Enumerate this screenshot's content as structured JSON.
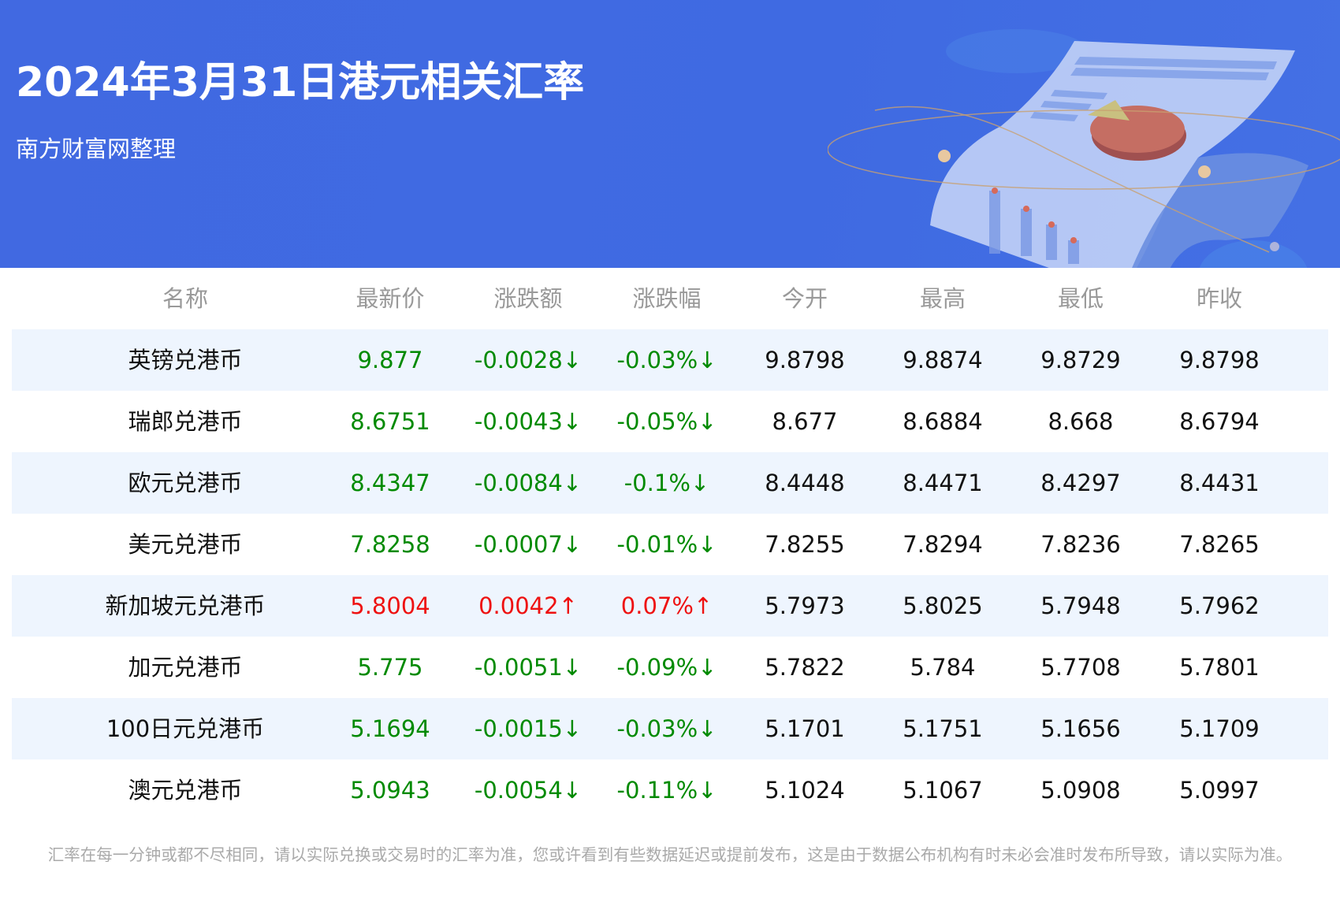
{
  "header": {
    "title": "2024年3月31日港元相关汇率",
    "subtitle": "南方财富网整理",
    "background_color": "#4169e1"
  },
  "table": {
    "columns": [
      "名称",
      "最新价",
      "涨跌额",
      "涨跌幅",
      "今开",
      "最高",
      "最低",
      "昨收"
    ],
    "rows": [
      {
        "name": "英镑兑港币",
        "latest": "9.877",
        "change": "-0.0028↓",
        "change_pct": "-0.03%↓",
        "open": "9.8798",
        "high": "9.8874",
        "low": "9.8729",
        "prev_close": "9.8798",
        "trend": "down"
      },
      {
        "name": "瑞郎兑港币",
        "latest": "8.6751",
        "change": "-0.0043↓",
        "change_pct": "-0.05%↓",
        "open": "8.677",
        "high": "8.6884",
        "low": "8.668",
        "prev_close": "8.6794",
        "trend": "down"
      },
      {
        "name": "欧元兑港币",
        "latest": "8.4347",
        "change": "-0.0084↓",
        "change_pct": "-0.1%↓",
        "open": "8.4448",
        "high": "8.4471",
        "low": "8.4297",
        "prev_close": "8.4431",
        "trend": "down"
      },
      {
        "name": "美元兑港币",
        "latest": "7.8258",
        "change": "-0.0007↓",
        "change_pct": "-0.01%↓",
        "open": "7.8255",
        "high": "7.8294",
        "low": "7.8236",
        "prev_close": "7.8265",
        "trend": "down"
      },
      {
        "name": "新加坡元兑港币",
        "latest": "5.8004",
        "change": "0.0042↑",
        "change_pct": "0.07%↑",
        "open": "5.7973",
        "high": "5.8025",
        "low": "5.7948",
        "prev_close": "5.7962",
        "trend": "up"
      },
      {
        "name": "加元兑港币",
        "latest": "5.775",
        "change": "-0.0051↓",
        "change_pct": "-0.09%↓",
        "open": "5.7822",
        "high": "5.784",
        "low": "5.7708",
        "prev_close": "5.7801",
        "trend": "down"
      },
      {
        "name": "100日元兑港币",
        "latest": "5.1694",
        "change": "-0.0015↓",
        "change_pct": "-0.03%↓",
        "open": "5.1701",
        "high": "5.1751",
        "low": "5.1656",
        "prev_close": "5.1709",
        "trend": "down"
      },
      {
        "name": "澳元兑港币",
        "latest": "5.0943",
        "change": "-0.0054↓",
        "change_pct": "-0.11%↓",
        "open": "5.1024",
        "high": "5.1067",
        "low": "5.0908",
        "prev_close": "5.0997",
        "trend": "down"
      }
    ],
    "colors": {
      "up": "#ee1111",
      "down": "#008a00",
      "stripe": "#eef5fe"
    }
  },
  "footer": {
    "disclaimer": "汇率在每一分钟或都不尽相同，请以实际兑换或交易时的汇率为准，您或许看到有些数据延迟或提前发布，这是由于数据公布机构有时未必会准时发布所导致，请以实际为准。"
  }
}
